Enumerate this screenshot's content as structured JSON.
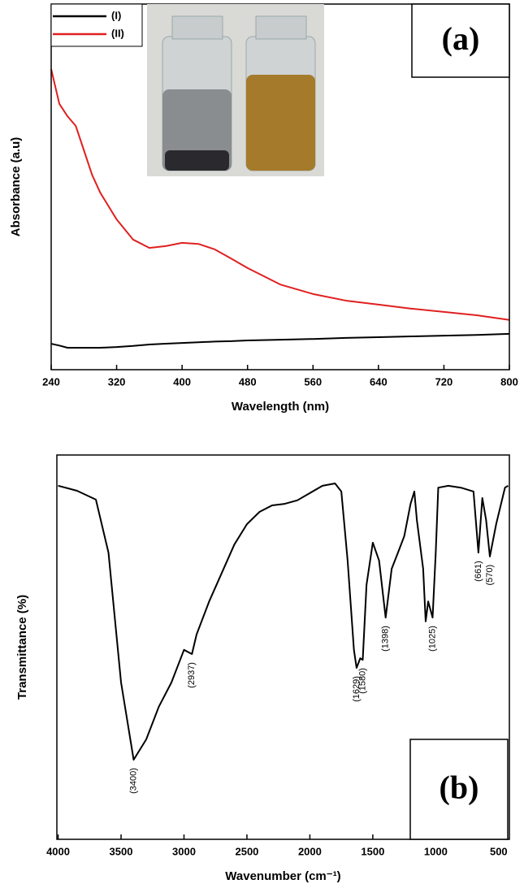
{
  "chart_data": [
    {
      "type": "line",
      "panel_label": "(a)",
      "x_label": "Wavelength (nm)",
      "y_label": "Absorbance (a.u)",
      "x": [
        240,
        250,
        260,
        270,
        280,
        290,
        300,
        320,
        340,
        360,
        380,
        400,
        420,
        440,
        460,
        480,
        520,
        560,
        600,
        640,
        680,
        720,
        760,
        800
      ],
      "series": [
        {
          "name": "(I)",
          "color": "#000000",
          "values": [
            0.071,
            0.066,
            0.06,
            0.06,
            0.06,
            0.06,
            0.06,
            0.062,
            0.065,
            0.069,
            0.071,
            0.073,
            0.075,
            0.077,
            0.078,
            0.08,
            0.082,
            0.084,
            0.087,
            0.089,
            0.091,
            0.093,
            0.095,
            0.098
          ]
        },
        {
          "name": "(II)",
          "color": "#e02020",
          "values": [
            0.822,
            0.727,
            0.693,
            0.667,
            0.6,
            0.533,
            0.484,
            0.411,
            0.356,
            0.333,
            0.338,
            0.347,
            0.344,
            0.329,
            0.304,
            0.278,
            0.233,
            0.207,
            0.189,
            0.178,
            0.167,
            0.158,
            0.149,
            0.136
          ]
        }
      ],
      "xlim": [
        240,
        800
      ],
      "xticks": [
        240,
        320,
        400,
        480,
        560,
        640,
        720,
        800
      ],
      "ylim": [
        0,
        1
      ],
      "legend": "upper left"
    },
    {
      "type": "line",
      "panel_label": "(b)",
      "x_label": "Wavenumber (cm⁻¹)",
      "y_label": "Transmittance (%)",
      "x": [
        4000,
        3850,
        3700,
        3600,
        3500,
        3400,
        3300,
        3200,
        3100,
        3000,
        2937,
        2900,
        2800,
        2700,
        2600,
        2500,
        2400,
        2300,
        2200,
        2100,
        2000,
        1900,
        1800,
        1750,
        1700,
        1650,
        1629,
        1600,
        1580,
        1550,
        1500,
        1450,
        1398,
        1350,
        1300,
        1250,
        1200,
        1170,
        1150,
        1100,
        1080,
        1060,
        1025,
        1000,
        980,
        900,
        800,
        700,
        661,
        630,
        600,
        570,
        520,
        450,
        425
      ],
      "values": [
        92,
        90.7,
        88.4,
        74.6,
        40.8,
        20.7,
        26,
        34.5,
        40.8,
        49.3,
        48.2,
        53.3,
        61.9,
        69.3,
        76.7,
        82,
        85.2,
        86.9,
        87.3,
        88.2,
        90.1,
        92,
        92.6,
        90.5,
        72.5,
        49.3,
        44.6,
        47.1,
        46.7,
        66.2,
        77.2,
        72.5,
        57.7,
        70.4,
        74.6,
        78.9,
        87.3,
        90.5,
        83.1,
        70.4,
        56.7,
        61.9,
        57.7,
        74.6,
        91.5,
        92,
        91.5,
        90.5,
        74.6,
        88.8,
        83.1,
        73.6,
        82,
        91.5,
        92
      ],
      "color": "#000000",
      "xlim": [
        4010,
        415
      ],
      "xticks": [
        4000,
        3500,
        3000,
        2500,
        2000,
        1500,
        1000,
        500
      ],
      "ylim": [
        0,
        100
      ],
      "annotations": [
        {
          "text": "(3400)",
          "x": 3400
        },
        {
          "text": "(2937)",
          "x": 2937
        },
        {
          "text": "(1629)",
          "x": 1629
        },
        {
          "text": "(1580)",
          "x": 1580
        },
        {
          "text": "(1398)",
          "x": 1398
        },
        {
          "text": "(1025)",
          "x": 1025
        },
        {
          "text": "(661)",
          "x": 661
        },
        {
          "text": "(570)",
          "x": 570
        }
      ]
    }
  ]
}
